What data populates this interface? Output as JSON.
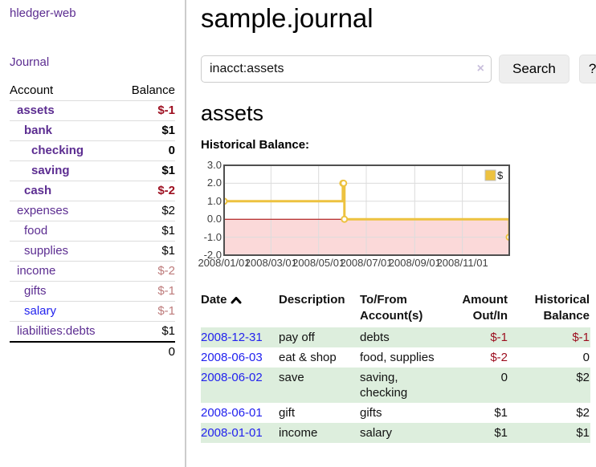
{
  "app": {
    "title": "hledger-web"
  },
  "sidebar": {
    "journal_link": "Journal",
    "headers": {
      "account": "Account",
      "balance": "Balance"
    },
    "accounts": [
      {
        "label": "assets",
        "balance": "$-1",
        "depth": 1,
        "bold": true,
        "bal_style": "neg"
      },
      {
        "label": "bank",
        "balance": "$1",
        "depth": 2,
        "bold": true,
        "bal_style": ""
      },
      {
        "label": "checking",
        "balance": "0",
        "depth": 3,
        "bold": true,
        "bal_style": ""
      },
      {
        "label": "saving",
        "balance": "$1",
        "depth": 3,
        "bold": true,
        "bal_style": ""
      },
      {
        "label": "cash",
        "balance": "$-2",
        "depth": 2,
        "bold": true,
        "bal_style": "neg"
      },
      {
        "label": "expenses",
        "balance": "$2",
        "depth": 1,
        "bold": false,
        "bal_style": ""
      },
      {
        "label": "food",
        "balance": "$1",
        "depth": 2,
        "bold": false,
        "bal_style": ""
      },
      {
        "label": "supplies",
        "balance": "$1",
        "depth": 2,
        "bold": false,
        "bal_style": ""
      },
      {
        "label": "income",
        "balance": "$-2",
        "depth": 1,
        "bold": false,
        "bal_style": "negmuted"
      },
      {
        "label": "gifts",
        "balance": "$-1",
        "depth": 2,
        "bold": false,
        "bal_style": "negmuted"
      },
      {
        "label": "salary",
        "balance": "$-1",
        "depth": 2,
        "bold": false,
        "bal_style": "negmuted",
        "link": "blue"
      },
      {
        "label": "liabilities:debts",
        "balance": "$1",
        "depth": 1,
        "bold": false,
        "bal_style": ""
      }
    ],
    "total": "0"
  },
  "main": {
    "title": "sample.journal",
    "search": {
      "value": "inacct:assets",
      "clear_icon": "×",
      "button_label": "Search",
      "help_label": "?"
    },
    "account_heading": "assets",
    "chart_label": "Historical Balance:"
  },
  "chart_data": {
    "type": "line",
    "title": "Historical Balance:",
    "legend": "$",
    "legend_position": "top-right",
    "grid": true,
    "x_domain": [
      "2008-01-01",
      "2008-12-31"
    ],
    "ylim": [
      -2,
      3
    ],
    "yticks": [
      {
        "v": 3,
        "t": "3.0"
      },
      {
        "v": 2,
        "t": "2.0"
      },
      {
        "v": 1,
        "t": "1.0"
      },
      {
        "v": 0,
        "t": "0.0"
      },
      {
        "v": -1,
        "t": "-1.0"
      },
      {
        "v": -2,
        "t": "-2.0"
      }
    ],
    "xticks": [
      {
        "d": "2008-01-01",
        "t": "2008/01/01"
      },
      {
        "d": "2008-03-01",
        "t": "2008/03/01"
      },
      {
        "d": "2008-05-01",
        "t": "2008/05/01"
      },
      {
        "d": "2008-07-01",
        "t": "2008/07/01"
      },
      {
        "d": "2008-09-01",
        "t": "2008/09/01"
      },
      {
        "d": "2008-11-01",
        "t": "2008/11/01"
      }
    ],
    "series": [
      {
        "name": "$",
        "style": "step",
        "points": [
          {
            "d": "2008-01-01",
            "v": 1
          },
          {
            "d": "2008-06-01",
            "v": 2
          },
          {
            "d": "2008-06-02",
            "v": 2
          },
          {
            "d": "2008-06-03",
            "v": 0
          },
          {
            "d": "2008-12-31",
            "v": -1
          }
        ]
      }
    ],
    "colors": {
      "line": "#edc240",
      "marker_fill": "#ffffff",
      "negative_region": "#fbd9d9",
      "zero_line": "#aa0000",
      "grid": "#dcdcdc",
      "border": "#4f4f4f"
    }
  },
  "register": {
    "headers": {
      "date": "Date",
      "description": "Description",
      "accounts": "To/From Account(s)",
      "amount": "Amount Out/In",
      "balance": "Historical Balance"
    },
    "rows": [
      {
        "date": "2008-12-31",
        "description": "pay off",
        "accounts": "debts",
        "amount": "$-1",
        "amount_neg": true,
        "balance": "$-1",
        "balance_neg": true
      },
      {
        "date": "2008-06-03",
        "description": "eat & shop",
        "accounts": "food, supplies",
        "amount": "$-2",
        "amount_neg": true,
        "balance": "0",
        "balance_neg": false
      },
      {
        "date": "2008-06-02",
        "description": "save",
        "accounts": "saving, checking",
        "amount": "0",
        "amount_neg": false,
        "balance": "$2",
        "balance_neg": false
      },
      {
        "date": "2008-06-01",
        "description": "gift",
        "accounts": "gifts",
        "amount": "$1",
        "amount_neg": false,
        "balance": "$2",
        "balance_neg": false
      },
      {
        "date": "2008-01-01",
        "description": "income",
        "accounts": "salary",
        "amount": "$1",
        "amount_neg": false,
        "balance": "$1",
        "balance_neg": false
      }
    ]
  }
}
